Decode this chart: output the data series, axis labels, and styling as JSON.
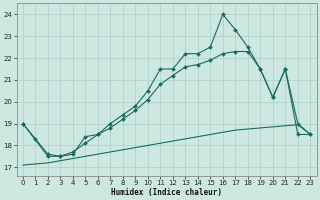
{
  "xlabel": "Humidex (Indice chaleur)",
  "bg_color": "#cce8e0",
  "grid_color": "#aacfc8",
  "line_color": "#1a6b5e",
  "xlim": [
    -0.5,
    23.5
  ],
  "ylim": [
    16.6,
    24.5
  ],
  "xticks": [
    0,
    1,
    2,
    3,
    4,
    5,
    6,
    7,
    8,
    9,
    10,
    11,
    12,
    13,
    14,
    15,
    16,
    17,
    18,
    19,
    20,
    21,
    22,
    23
  ],
  "yticks": [
    17,
    18,
    19,
    20,
    21,
    22,
    23,
    24
  ],
  "line_top": {
    "x": [
      0,
      1,
      2,
      3,
      4,
      5,
      6,
      7,
      8,
      9,
      10,
      11,
      12,
      13,
      14,
      15,
      16,
      17,
      18,
      19,
      20,
      21,
      22,
      23
    ],
    "y": [
      19.0,
      18.3,
      17.6,
      17.5,
      17.6,
      18.4,
      18.5,
      19.0,
      19.4,
      19.8,
      20.5,
      21.5,
      21.5,
      22.2,
      22.2,
      22.5,
      24.0,
      23.3,
      22.5,
      21.5,
      20.2,
      21.5,
      19.0,
      18.5
    ]
  },
  "line_mid": {
    "x": [
      0,
      2,
      3,
      4,
      5,
      6,
      7,
      8,
      9,
      10,
      11,
      12,
      13,
      14,
      15,
      16,
      17,
      18,
      19,
      20,
      21,
      22,
      23
    ],
    "y": [
      19.0,
      17.5,
      17.5,
      17.7,
      18.1,
      18.5,
      18.8,
      19.2,
      19.6,
      20.1,
      20.8,
      21.2,
      21.6,
      21.7,
      21.9,
      22.2,
      22.3,
      22.3,
      21.5,
      20.2,
      21.5,
      18.5,
      18.5
    ]
  },
  "line_bot": {
    "x": [
      0,
      1,
      2,
      3,
      4,
      5,
      6,
      7,
      8,
      9,
      10,
      11,
      12,
      13,
      14,
      15,
      16,
      17,
      18,
      19,
      20,
      21,
      22,
      23
    ],
    "y": [
      17.1,
      17.15,
      17.2,
      17.3,
      17.4,
      17.5,
      17.6,
      17.7,
      17.8,
      17.9,
      18.0,
      18.1,
      18.2,
      18.3,
      18.4,
      18.5,
      18.6,
      18.7,
      18.75,
      18.8,
      18.85,
      18.9,
      18.95,
      18.5
    ]
  }
}
